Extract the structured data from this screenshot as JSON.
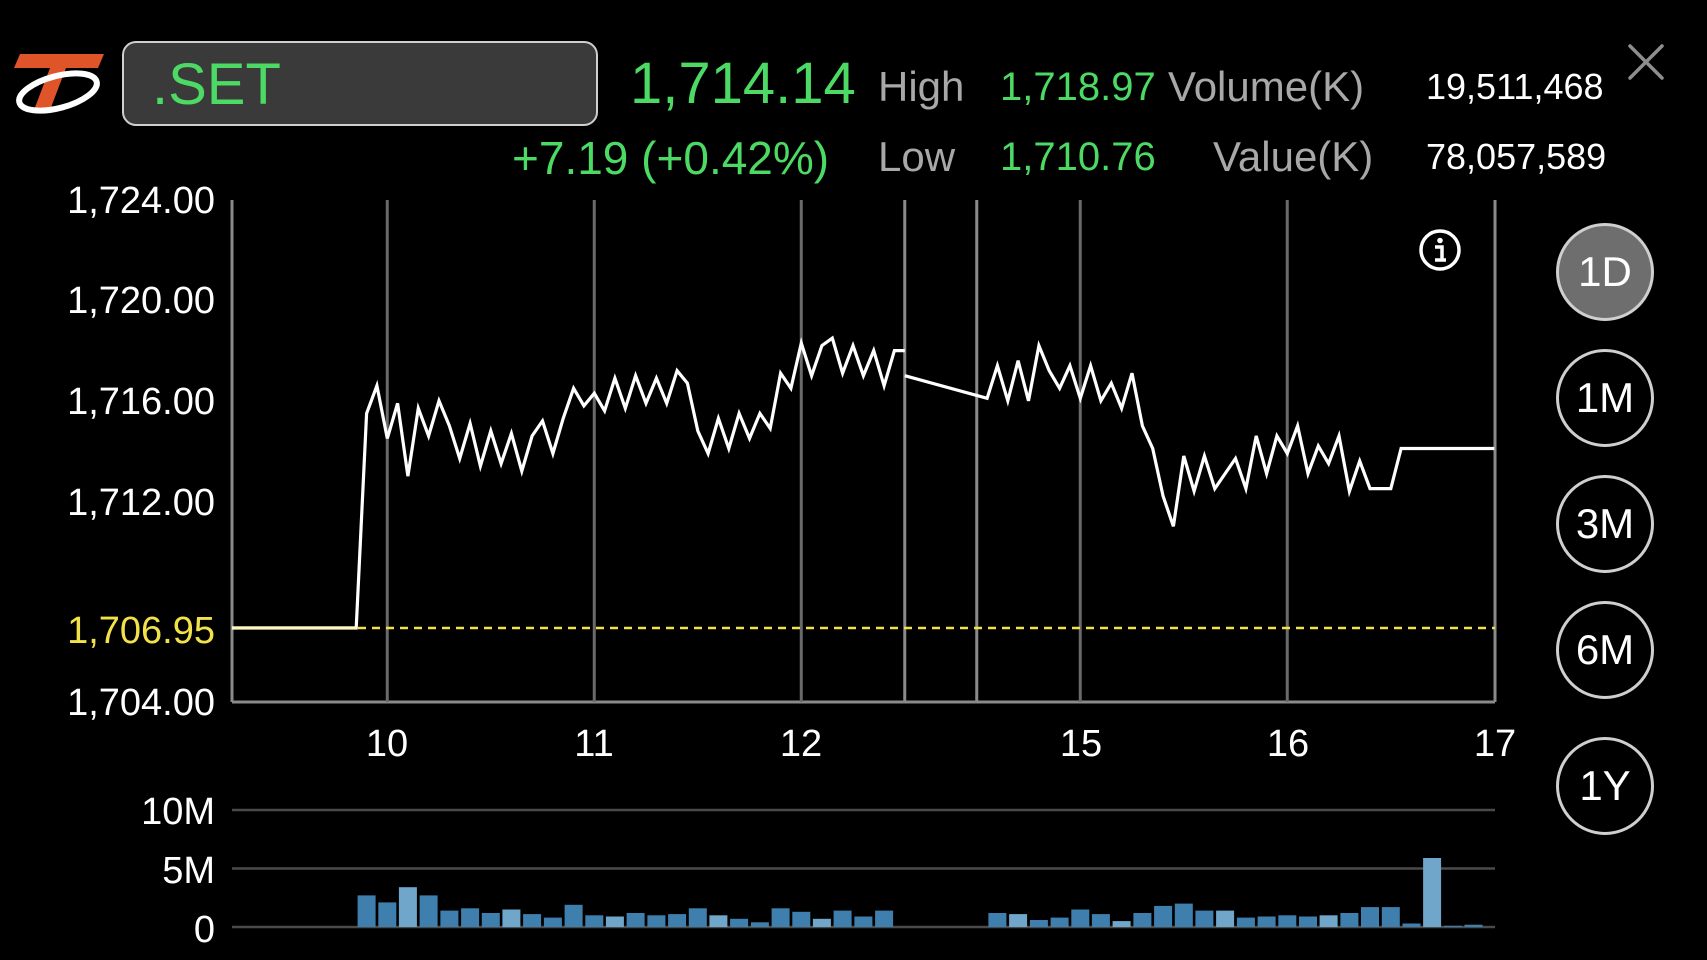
{
  "header": {
    "symbol": ".SET",
    "last": "1,714.14",
    "change": "+7.19 (+0.42%)",
    "high_label": "High",
    "high": "1,718.97",
    "low_label": "Low",
    "low": "1,710.76",
    "volume_label": "Volume(K)",
    "volume": "19,511,468",
    "value_label": "Value(K)",
    "value": "78,057,589"
  },
  "periods": [
    {
      "label": "1D",
      "active": true
    },
    {
      "label": "1M",
      "active": false
    },
    {
      "label": "3M",
      "active": false
    },
    {
      "label": "6M",
      "active": false
    },
    {
      "label": "1Y",
      "active": false
    }
  ],
  "colors": {
    "up": "#4cd964",
    "line": "#ffffff",
    "prev_close": "#f2e24a",
    "volume_bar": "#3f7fae",
    "volume_bar_light": "#6fa6c9",
    "grid": "#555555"
  },
  "chart_data": [
    {
      "type": "line",
      "y_tick_labels": [
        "1,724.00",
        "1,720.00",
        "1,716.00",
        "1,712.00",
        "1,706.95",
        "1,704.00"
      ],
      "x_tick_labels": [
        "10",
        "11",
        "12",
        "15",
        "16",
        "17"
      ],
      "ylim": [
        1704,
        1724
      ],
      "prev_close": 1706.95,
      "x_unit": "hour",
      "x_ticks": [
        10,
        11,
        12,
        15,
        16,
        17
      ],
      "session_break": [
        12.5,
        14.5
      ],
      "session1": {
        "x": [
          9.25,
          9.85,
          9.9,
          9.95,
          10.0,
          10.05,
          10.1,
          10.15,
          10.2,
          10.25,
          10.3,
          10.35,
          10.4,
          10.45,
          10.5,
          10.55,
          10.6,
          10.65,
          10.7,
          10.75,
          10.8,
          10.85,
          10.9,
          10.95,
          11.0,
          11.05,
          11.1,
          11.15,
          11.2,
          11.25,
          11.3,
          11.35,
          11.4,
          11.45,
          11.5,
          11.55,
          11.6,
          11.65,
          11.7,
          11.75,
          11.8,
          11.85,
          11.9,
          11.95,
          12.0,
          12.05,
          12.1,
          12.15,
          12.2,
          12.25,
          12.3,
          12.35,
          12.4,
          12.45,
          12.5
        ],
        "y": [
          1706.95,
          1706.95,
          1715.5,
          1716.6,
          1714.5,
          1715.9,
          1713.0,
          1715.7,
          1714.6,
          1716.0,
          1715.0,
          1713.7,
          1715.1,
          1713.4,
          1714.8,
          1713.5,
          1714.7,
          1713.2,
          1714.6,
          1715.2,
          1713.9,
          1715.3,
          1716.5,
          1715.8,
          1716.3,
          1715.6,
          1716.9,
          1715.7,
          1717.0,
          1715.9,
          1716.9,
          1715.9,
          1717.2,
          1716.7,
          1714.8,
          1713.9,
          1715.3,
          1714.1,
          1715.5,
          1714.5,
          1715.5,
          1714.9,
          1717.1,
          1716.5,
          1718.3,
          1717.0,
          1718.2,
          1718.5,
          1717.1,
          1718.2,
          1717.0,
          1718.0,
          1716.6,
          1718.0,
          1718.0
        ]
      },
      "session2": {
        "x": [
          14.5,
          14.55,
          14.6,
          14.65,
          14.7,
          14.75,
          14.8,
          14.85,
          14.9,
          14.95,
          15.0,
          15.05,
          15.1,
          15.15,
          15.2,
          15.25,
          15.3,
          15.35,
          15.4,
          15.45,
          15.5,
          15.55,
          15.6,
          15.65,
          15.7,
          15.75,
          15.8,
          15.85,
          15.9,
          15.95,
          16.0,
          16.05,
          16.1,
          16.15,
          16.2,
          16.25,
          16.3,
          16.35,
          16.4,
          16.45,
          16.5,
          16.55,
          16.6,
          16.65,
          17.0
        ],
        "y": [
          1717.0,
          1716.1,
          1717.4,
          1716.0,
          1717.6,
          1716.0,
          1718.2,
          1717.2,
          1716.5,
          1717.4,
          1716.1,
          1717.4,
          1716.0,
          1716.7,
          1715.7,
          1717.1,
          1715.0,
          1714.1,
          1712.2,
          1711.0,
          1713.8,
          1712.4,
          1713.8,
          1712.5,
          1713.1,
          1713.7,
          1712.5,
          1714.6,
          1713.1,
          1714.6,
          1713.9,
          1715.0,
          1713.1,
          1714.2,
          1713.5,
          1714.6,
          1712.4,
          1713.6,
          1712.5,
          1712.5,
          1712.5,
          1714.1,
          1714.1,
          1714.1,
          1714.1
        ]
      }
    },
    {
      "type": "bar",
      "y_tick_labels": [
        "10M",
        "5M",
        "0"
      ],
      "ylim": [
        0,
        10
      ],
      "unit": "M",
      "x": [
        9.9,
        10.0,
        10.1,
        10.2,
        10.3,
        10.4,
        10.5,
        10.6,
        10.7,
        10.8,
        10.9,
        11.0,
        11.1,
        11.2,
        11.3,
        11.4,
        11.5,
        11.6,
        11.7,
        11.8,
        11.9,
        12.0,
        12.1,
        12.2,
        12.3,
        12.4,
        14.6,
        14.7,
        14.8,
        14.9,
        15.0,
        15.1,
        15.2,
        15.3,
        15.4,
        15.5,
        15.6,
        15.7,
        15.8,
        15.9,
        16.0,
        16.1,
        16.2,
        16.3,
        16.4,
        16.5,
        16.6,
        16.7,
        16.8,
        16.9
      ],
      "values": [
        2.7,
        2.1,
        3.4,
        2.7,
        1.4,
        1.6,
        1.2,
        1.5,
        1.1,
        0.8,
        1.9,
        1.0,
        0.9,
        1.2,
        1.0,
        1.1,
        1.6,
        1.0,
        0.7,
        0.4,
        1.6,
        1.3,
        0.7,
        1.4,
        0.9,
        1.4,
        1.2,
        1.1,
        0.6,
        0.8,
        1.5,
        1.1,
        0.5,
        1.2,
        1.8,
        2.0,
        1.4,
        1.4,
        0.8,
        0.9,
        1.0,
        0.9,
        1.0,
        1.2,
        1.7,
        1.7,
        0.3,
        5.9,
        0.1,
        0.2
      ]
    }
  ]
}
